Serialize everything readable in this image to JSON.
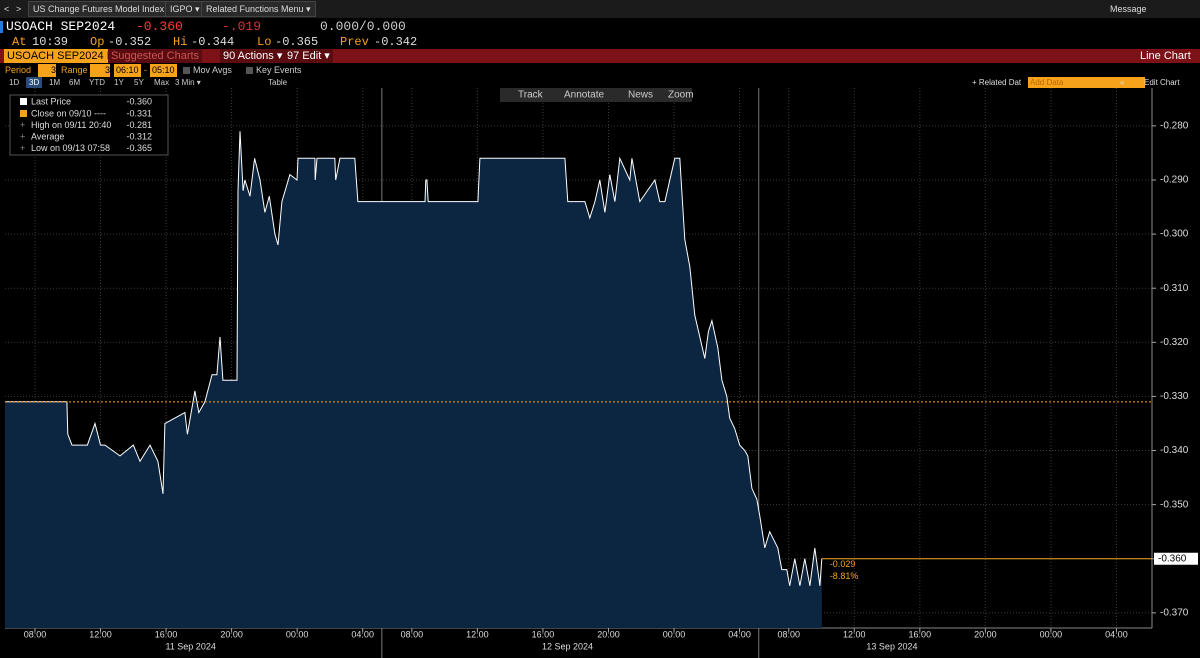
{
  "topbar": {
    "nav_back": "<",
    "nav_fwd": ">",
    "security_menu": "US Change Futures Model Index ▾",
    "igpo": "IGPO ▾",
    "related": "Related Functions Menu ▾",
    "message": "Message"
  },
  "quote": {
    "ticker": "USOACH SEP2024",
    "last": "-0.360",
    "change": "-.019",
    "bid_ask": "0.000/0.000",
    "at_label": "At",
    "at": "10:39",
    "op_label": "Op",
    "op": "-0.352",
    "hi_label": "Hi",
    "hi": "-0.344",
    "lo_label": "Lo",
    "lo": "-0.365",
    "prev_label": "Prev",
    "prev": "-0.342"
  },
  "actionbar": {
    "security": "USOACH SEP2024 In",
    "suggested": "Suggested Charts",
    "actions": "90 Actions ▾",
    "edit": "97 Edit ▾",
    "view": "Line Chart"
  },
  "settings": {
    "period_label": "Period",
    "period": "3",
    "range_label": "Range",
    "range_value": "3",
    "range_start": "06:10",
    "range_sep": "-",
    "range_end": "05:10",
    "mov_avgs": "Mov Avgs",
    "key_events": "Key Events"
  },
  "timeframes": {
    "buttons": [
      "1D",
      "3D",
      "1M",
      "6M",
      "YTD",
      "1Y",
      "5Y",
      "Max"
    ],
    "active": 1,
    "interval": "3 Min ▾",
    "table": "Table",
    "related_data": "+ Related Dat",
    "add_data": "Add Data",
    "collapse": "«",
    "edit_chart": "Edit Chart"
  },
  "chart_tools": [
    "Track",
    "Annotate",
    "News",
    "Zoom"
  ],
  "chart_data": {
    "type": "area",
    "x": [
      6.17,
      9.95,
      10.0,
      10.26,
      11.2,
      11.66,
      12.0,
      12.27,
      13.19,
      14.0,
      14.41,
      15.02,
      15.5,
      15.81,
      15.93,
      17.15,
      17.3,
      17.76,
      18.0,
      18.37,
      18.8,
      19.1,
      19.29,
      19.47,
      20.33,
      20.39,
      20.51,
      20.7,
      20.81,
      21.12,
      21.4,
      21.73,
      22.03,
      22.3,
      22.64,
      22.83,
      23.07,
      23.56,
      23.99,
      24.05,
      25.08,
      25.1,
      25.21,
      26.3,
      26.35,
      26.61,
      27.52,
      27.71,
      32.8,
      32.85,
      32.92,
      33.0,
      36.03,
      36.15,
      41.34,
      41.52,
      42.56,
      42.86,
      43.17,
      43.47,
      43.78,
      44.08,
      44.39,
      44.69,
      45.3,
      45.43,
      45.91,
      46.83,
      47.13,
      47.44,
      47.74,
      48.05,
      48.35,
      48.66,
      48.96,
      49.27,
      49.57,
      49.88,
      50.1,
      50.31,
      50.67,
      50.92,
      51.22,
      51.4,
      51.71,
      52.01,
      52.32,
      52.5,
      52.75,
      53.05,
      54.23,
      54.54,
      54.84,
      55.33,
      55.58,
      55.88,
      56.06,
      56.37,
      56.68,
      56.98,
      57.29,
      57.59,
      57.9,
      58.02
    ],
    "series": [
      {
        "name": "Last Price",
        "color": "#ffffff",
        "area_color": "#0c2540",
        "values": [
          -0.331,
          -0.331,
          -0.337,
          -0.339,
          -0.339,
          -0.335,
          -0.339,
          -0.339,
          -0.341,
          -0.339,
          -0.342,
          -0.339,
          -0.342,
          -0.348,
          -0.335,
          -0.333,
          -0.337,
          -0.329,
          -0.333,
          -0.331,
          -0.326,
          -0.326,
          -0.319,
          -0.327,
          -0.327,
          -0.292,
          -0.281,
          -0.292,
          -0.29,
          -0.293,
          -0.286,
          -0.29,
          -0.296,
          -0.293,
          -0.3,
          -0.302,
          -0.294,
          -0.289,
          -0.29,
          -0.286,
          -0.286,
          -0.29,
          -0.286,
          -0.286,
          -0.29,
          -0.286,
          -0.286,
          -0.294,
          -0.294,
          -0.29,
          -0.29,
          -0.294,
          -0.294,
          -0.286,
          -0.286,
          -0.294,
          -0.294,
          -0.297,
          -0.294,
          -0.29,
          -0.296,
          -0.289,
          -0.294,
          -0.286,
          -0.29,
          -0.286,
          -0.294,
          -0.29,
          -0.294,
          -0.294,
          -0.29,
          -0.286,
          -0.286,
          -0.301,
          -0.306,
          -0.315,
          -0.319,
          -0.323,
          -0.318,
          -0.316,
          -0.321,
          -0.327,
          -0.33,
          -0.334,
          -0.336,
          -0.339,
          -0.34,
          -0.341,
          -0.347,
          -0.349,
          -0.352,
          -0.358,
          -0.355,
          -0.358,
          -0.362,
          -0.362,
          -0.365,
          -0.36,
          -0.365,
          -0.36,
          -0.365,
          -0.358,
          -0.365,
          -0.36
        ]
      }
    ],
    "xlim": [
      6.17,
      78.17
    ],
    "breaks": [
      [
        29.17,
        30.17
      ],
      [
        53.17,
        54.17
      ]
    ],
    "xticks": [
      {
        "value": 8,
        "label": "08:00"
      },
      {
        "value": 12,
        "label": "12:00"
      },
      {
        "value": 16,
        "label": "16:00"
      },
      {
        "value": 20,
        "label": "20:00"
      },
      {
        "value": 24,
        "label": "00:00"
      },
      {
        "value": 28,
        "label": "04:00"
      },
      {
        "value": 32,
        "label": "08:00"
      },
      {
        "value": 36,
        "label": "12:00"
      },
      {
        "value": 40,
        "label": "16:00"
      },
      {
        "value": 44,
        "label": "20:00"
      },
      {
        "value": 48,
        "label": "00:00"
      },
      {
        "value": 52,
        "label": "04:00"
      },
      {
        "value": 56,
        "label": "08:00"
      },
      {
        "value": 60,
        "label": "12:00"
      },
      {
        "value": 64,
        "label": "16:00"
      },
      {
        "value": 68,
        "label": "20:00"
      },
      {
        "value": 72,
        "label": "00:00"
      },
      {
        "value": 76,
        "label": "04:00"
      }
    ],
    "dates": [
      {
        "value": 17.5,
        "label": "11 Sep 2024"
      },
      {
        "value": 41.5,
        "label": "12 Sep 2024"
      },
      {
        "value": 62.3,
        "label": "13 Sep 2024"
      }
    ],
    "ylim": [
      -0.3728,
      -0.273
    ],
    "yticks": [
      {
        "value": -0.28,
        "label": "-0.280"
      },
      {
        "value": -0.29,
        "label": "-0.290"
      },
      {
        "value": -0.3,
        "label": "-0.300"
      },
      {
        "value": -0.31,
        "label": "-0.310"
      },
      {
        "value": -0.32,
        "label": "-0.320"
      },
      {
        "value": -0.33,
        "label": "-0.330"
      },
      {
        "value": -0.34,
        "label": "-0.340"
      },
      {
        "value": -0.35,
        "label": "-0.350"
      },
      {
        "value": -0.36,
        "label": "-0.360"
      },
      {
        "value": -0.37,
        "label": "-0.370"
      }
    ],
    "grid": true,
    "close_line": {
      "value": -0.331,
      "color": "#f7a21b"
    },
    "last_label": "-0.360",
    "change_labels": [
      "-0.029",
      "-8.81%"
    ],
    "legend_rows": [
      {
        "label": "Close on 09/10 ----",
        "value": "-0.331"
      },
      {
        "label": "High on 09/11 20:40",
        "value": "-0.281"
      },
      {
        "label": "Average",
        "value": "-0.312"
      },
      {
        "label": "Low on 09/13 07:58",
        "value": "-0.365"
      }
    ]
  }
}
